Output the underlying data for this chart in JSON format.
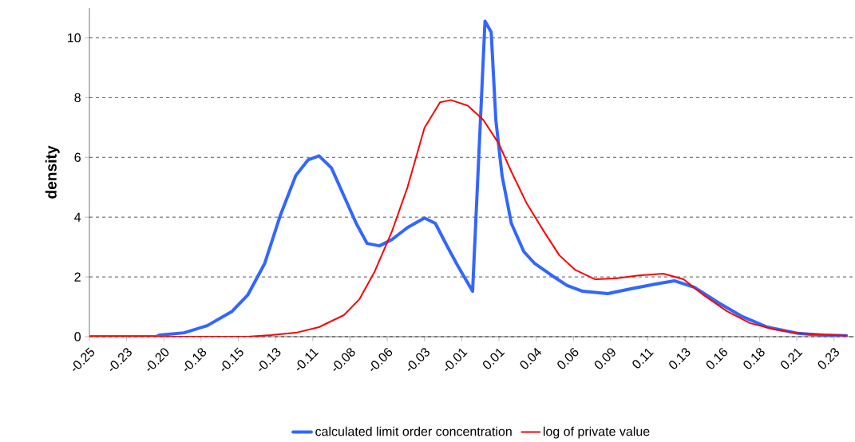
{
  "chart_data": {
    "type": "line",
    "ylabel": "density",
    "xlim": [
      -0.25,
      0.243
    ],
    "ylim": [
      0,
      11
    ],
    "xticks": [
      {
        "value": -0.25,
        "label": "-0.25"
      },
      {
        "value": -0.226,
        "label": "-0.23"
      },
      {
        "value": -0.202,
        "label": "-0.20"
      },
      {
        "value": -0.178,
        "label": "-0.18"
      },
      {
        "value": -0.154,
        "label": "-0.15"
      },
      {
        "value": -0.13,
        "label": "-0.13"
      },
      {
        "value": -0.106,
        "label": "-0.11"
      },
      {
        "value": -0.082,
        "label": "-0.08"
      },
      {
        "value": -0.058,
        "label": "-0.06"
      },
      {
        "value": -0.034,
        "label": "-0.03"
      },
      {
        "value": -0.01,
        "label": "-0.01"
      },
      {
        "value": 0.014,
        "label": "0.01"
      },
      {
        "value": 0.038,
        "label": "0.04"
      },
      {
        "value": 0.062,
        "label": "0.06"
      },
      {
        "value": 0.086,
        "label": "0.09"
      },
      {
        "value": 0.11,
        "label": "0.11"
      },
      {
        "value": 0.134,
        "label": "0.13"
      },
      {
        "value": 0.158,
        "label": "0.16"
      },
      {
        "value": 0.182,
        "label": "0.18"
      },
      {
        "value": 0.206,
        "label": "0.21"
      },
      {
        "value": 0.23,
        "label": "0.23"
      }
    ],
    "yticks": [
      0,
      2,
      4,
      6,
      8,
      10
    ],
    "grid": "y",
    "legend": "bottom",
    "marker": "none",
    "series": [
      {
        "name": "calculated limit order concentration",
        "color": "#3366ff",
        "x": [
          -0.25,
          -0.207,
          -0.205,
          -0.189,
          -0.174,
          -0.158,
          -0.148,
          -0.137,
          -0.127,
          -0.117,
          -0.109,
          -0.102,
          -0.094,
          -0.086,
          -0.078,
          -0.071,
          -0.063,
          -0.055,
          -0.045,
          -0.034,
          -0.027,
          -0.019,
          -0.012,
          -0.003,
          0.005,
          0.009,
          0.012,
          0.016,
          0.022,
          0.03,
          0.037,
          0.048,
          0.058,
          0.068,
          0.084,
          0.099,
          0.115,
          0.127,
          0.14,
          0.156,
          0.171,
          0.187,
          0.207,
          0.223,
          0.238
        ],
        "values": [
          0,
          0,
          0.05,
          0.13,
          0.37,
          0.85,
          1.39,
          2.45,
          4.05,
          5.39,
          5.92,
          6.05,
          5.65,
          4.72,
          3.79,
          3.12,
          3.04,
          3.25,
          3.65,
          3.97,
          3.79,
          2.99,
          2.32,
          1.52,
          10.56,
          10.19,
          7.25,
          5.39,
          3.79,
          2.85,
          2.45,
          2.05,
          1.71,
          1.52,
          1.44,
          1.6,
          1.76,
          1.87,
          1.65,
          1.12,
          0.67,
          0.32,
          0.11,
          0.05,
          0.03
        ]
      },
      {
        "name": "log of private value",
        "color": "#ff0000",
        "x": [
          -0.25,
          -0.148,
          -0.133,
          -0.117,
          -0.102,
          -0.086,
          -0.076,
          -0.066,
          -0.055,
          -0.045,
          -0.034,
          -0.024,
          -0.017,
          -0.006,
          0.004,
          0.014,
          0.022,
          0.032,
          0.043,
          0.053,
          0.063,
          0.076,
          0.089,
          0.104,
          0.12,
          0.133,
          0.146,
          0.161,
          0.176,
          0.192,
          0.207,
          0.238
        ],
        "values": [
          0,
          0,
          0.05,
          0.13,
          0.32,
          0.72,
          1.25,
          2.19,
          3.52,
          4.99,
          6.99,
          7.84,
          7.92,
          7.73,
          7.25,
          6.45,
          5.52,
          4.45,
          3.52,
          2.72,
          2.24,
          1.92,
          1.95,
          2.05,
          2.11,
          1.92,
          1.39,
          0.85,
          0.45,
          0.24,
          0.11,
          0.03
        ]
      }
    ]
  }
}
